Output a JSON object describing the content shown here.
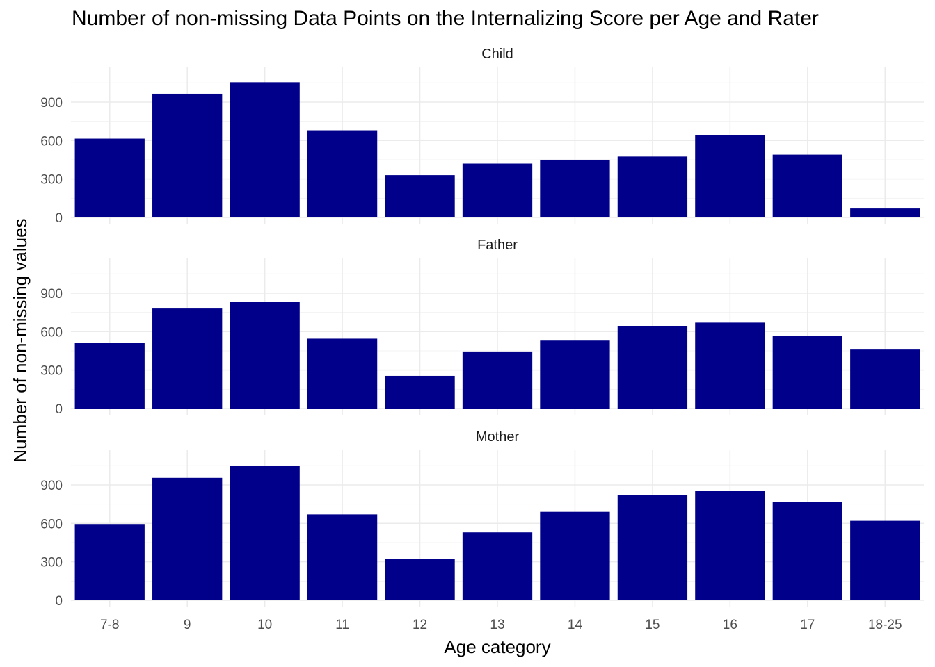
{
  "chart_data": {
    "type": "bar",
    "title": "Number of non-missing Data Points on the Internalizing Score per Age and Rater",
    "xlabel": "Age category",
    "ylabel": "Number of non-missing values",
    "categories": [
      "7-8",
      "9",
      "10",
      "11",
      "12",
      "13",
      "14",
      "15",
      "16",
      "17",
      "18-25"
    ],
    "yticks": [
      "0",
      "300",
      "600",
      "900"
    ],
    "ylim": [
      0,
      1110
    ],
    "grid": true,
    "bar_color": "#00008B",
    "facets": [
      {
        "name": "Child",
        "values": [
          615,
          965,
          1055,
          680,
          330,
          420,
          450,
          475,
          645,
          490,
          70
        ]
      },
      {
        "name": "Father",
        "values": [
          510,
          780,
          830,
          545,
          255,
          445,
          530,
          645,
          670,
          565,
          460
        ]
      },
      {
        "name": "Mother",
        "values": [
          595,
          955,
          1050,
          670,
          325,
          530,
          690,
          820,
          855,
          765,
          620
        ]
      }
    ]
  }
}
